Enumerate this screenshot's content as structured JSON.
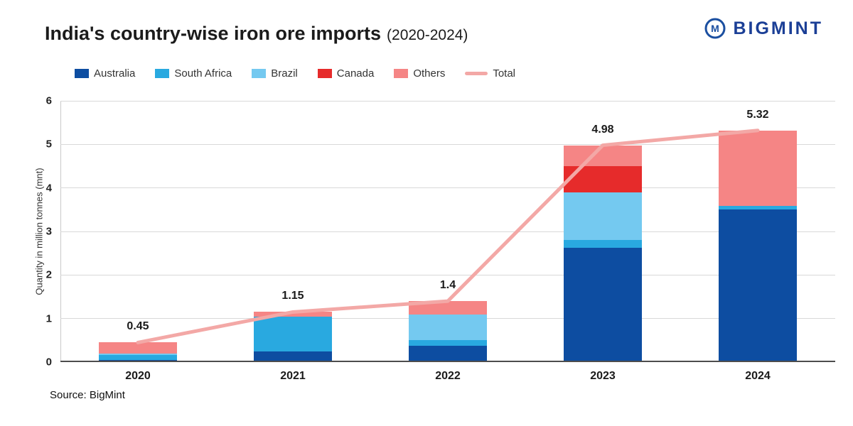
{
  "header": {
    "title": "India's country-wise iron ore imports",
    "subtitle": "(2020-2024)",
    "brand": "BIGMINT"
  },
  "source": "Source: BigMint",
  "chart_data": {
    "type": "bar",
    "stacked": true,
    "title": "India's country-wise iron ore imports (2020-2024)",
    "categories": [
      "2020",
      "2021",
      "2022",
      "2023",
      "2024"
    ],
    "series": [
      {
        "name": "Australia",
        "color": "#0d4da1",
        "values": [
          0.05,
          0.25,
          0.38,
          2.62,
          3.5
        ]
      },
      {
        "name": "South Africa",
        "color": "#29a9e0",
        "values": [
          0.12,
          0.8,
          0.12,
          0.18,
          0.08
        ]
      },
      {
        "name": "Brazil",
        "color": "#74c9f0",
        "values": [
          0.03,
          0.0,
          0.6,
          1.1,
          0.0
        ]
      },
      {
        "name": "Canada",
        "color": "#e62b2b",
        "values": [
          0.0,
          0.0,
          0.0,
          0.6,
          0.0
        ]
      },
      {
        "name": "Others",
        "color": "#f58585",
        "values": [
          0.25,
          0.1,
          0.3,
          0.48,
          1.74
        ]
      }
    ],
    "line_series": {
      "name": "Total",
      "color": "#f3a8a6",
      "values": [
        0.45,
        1.15,
        1.4,
        4.98,
        5.32
      ]
    },
    "total_labels": [
      "0.45",
      "1.15",
      "1.4",
      "4.98",
      "5.32"
    ],
    "xlabel": "",
    "ylabel": "Quantity in million tonnes (mnt)",
    "ylim": [
      0,
      6
    ],
    "yticks": [
      0,
      1,
      2,
      3,
      4,
      5,
      6
    ],
    "grid": true,
    "legend_position": "top"
  }
}
